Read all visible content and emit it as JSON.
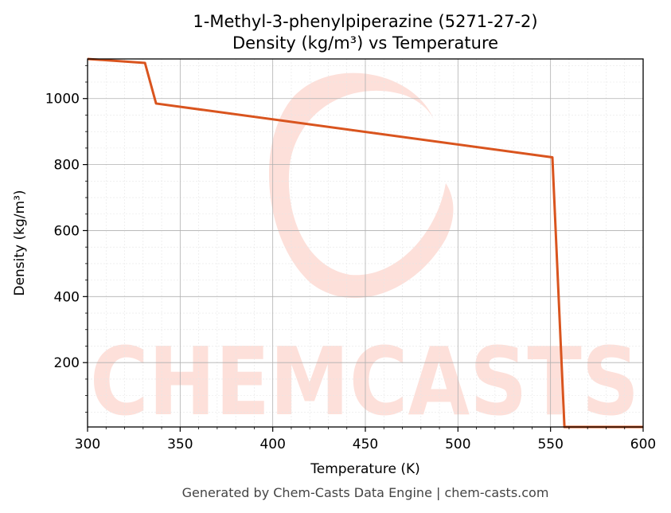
{
  "chart_data": {
    "type": "line",
    "title": "1-Methyl-3-phenylpiperazine (5271-27-2)",
    "subtitle": "Density (kg/m³) vs Temperature",
    "xlabel": "Temperature (K)",
    "ylabel": "Density (kg/m³)",
    "xlim": [
      300,
      600
    ],
    "ylim": [
      5,
      1120
    ],
    "x_ticks": [
      300,
      350,
      400,
      450,
      500,
      550,
      600
    ],
    "y_ticks": [
      200,
      400,
      600,
      800,
      1000
    ],
    "grid": true,
    "series": [
      {
        "color": "#d9541e",
        "points": [
          [
            300,
            1120
          ],
          [
            331,
            1108
          ],
          [
            337,
            985
          ],
          [
            551,
            822
          ],
          [
            557.5,
            5
          ],
          [
            600,
            5
          ]
        ]
      }
    ]
  },
  "watermark": {
    "text": "CHEMCASTS",
    "color": "#fde0da"
  },
  "footer": "Generated by Chem-Casts Data Engine | chem-casts.com"
}
